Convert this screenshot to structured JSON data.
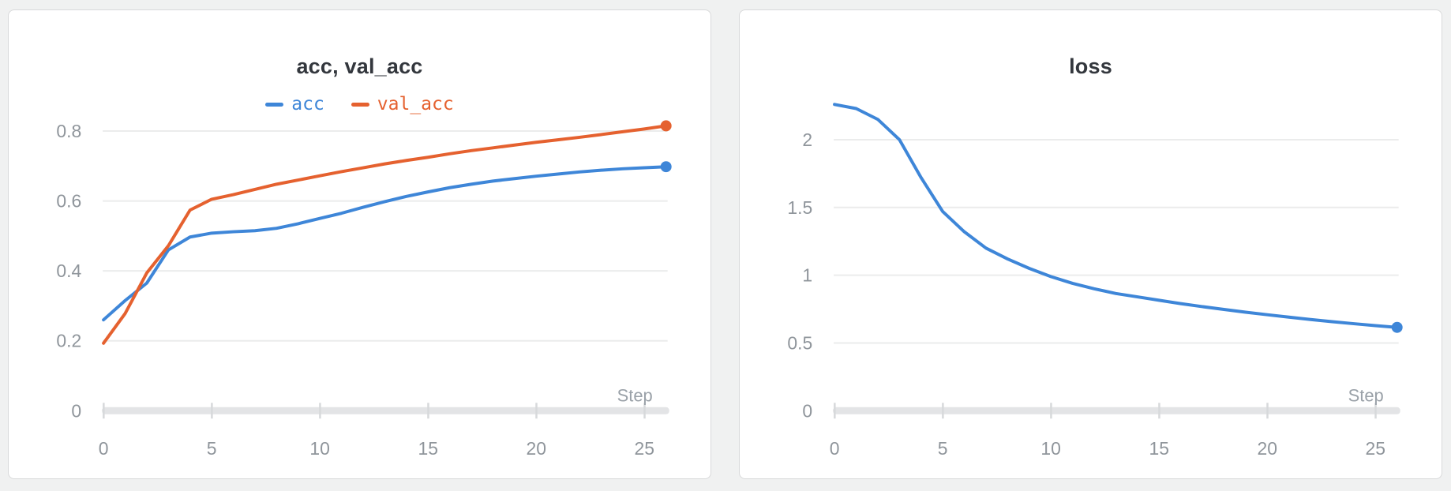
{
  "palette": {
    "blue": "#3e86d8",
    "orange": "#e5612f",
    "grid": "#ebecec",
    "axis_bar": "#e3e4e6",
    "tick_mark": "#d7d9db",
    "tick_label": "#8f959b",
    "axis_title": "#9aa1a8",
    "title_text": "#33373d",
    "card_bg": "#ffffff",
    "card_border": "#d8d9da",
    "page_bg": "#f0f1f1"
  },
  "chart_data": [
    {
      "type": "line",
      "title": "acc, val_acc",
      "xlabel": "Step",
      "x": [
        0,
        1,
        2,
        3,
        4,
        5,
        6,
        7,
        8,
        9,
        10,
        11,
        12,
        13,
        14,
        15,
        16,
        17,
        18,
        19,
        20,
        21,
        22,
        23,
        24,
        25,
        26
      ],
      "x_ticks": [
        0,
        5,
        10,
        15,
        20,
        25
      ],
      "x_tick_labels": [
        "0",
        "5",
        "10",
        "15",
        "20",
        "25"
      ],
      "y_ticks": [
        0,
        0.2,
        0.4,
        0.6,
        0.8
      ],
      "y_tick_labels": [
        "0",
        "0.2",
        "0.4",
        "0.6",
        "0.8"
      ],
      "xlim": [
        0,
        26
      ],
      "ylim": [
        0,
        0.88
      ],
      "grid": "horizontal",
      "legend_position": "top-center",
      "series": [
        {
          "name": "acc",
          "color": "#3e86d8",
          "values": [
            0.26,
            0.315,
            0.365,
            0.46,
            0.497,
            0.508,
            0.512,
            0.515,
            0.522,
            0.535,
            0.55,
            0.565,
            0.582,
            0.598,
            0.613,
            0.626,
            0.638,
            0.648,
            0.657,
            0.664,
            0.671,
            0.677,
            0.683,
            0.688,
            0.692,
            0.695,
            0.698
          ]
        },
        {
          "name": "val_acc",
          "color": "#e5612f",
          "values": [
            0.193,
            0.278,
            0.394,
            0.472,
            0.574,
            0.605,
            0.618,
            0.633,
            0.648,
            0.66,
            0.672,
            0.684,
            0.695,
            0.706,
            0.716,
            0.725,
            0.735,
            0.744,
            0.752,
            0.76,
            0.768,
            0.775,
            0.782,
            0.79,
            0.798,
            0.806,
            0.815
          ]
        }
      ]
    },
    {
      "type": "line",
      "title": "loss",
      "xlabel": "Step",
      "x": [
        0,
        1,
        2,
        3,
        4,
        5,
        6,
        7,
        8,
        9,
        10,
        11,
        12,
        13,
        14,
        15,
        16,
        17,
        18,
        19,
        20,
        21,
        22,
        23,
        24,
        25,
        26
      ],
      "x_ticks": [
        0,
        5,
        10,
        15,
        20,
        25
      ],
      "x_tick_labels": [
        "0",
        "5",
        "10",
        "15",
        "20",
        "25"
      ],
      "y_ticks": [
        0,
        0.5,
        1,
        1.5,
        2
      ],
      "y_tick_labels": [
        "0",
        "0.5",
        "1",
        "1.5",
        "2"
      ],
      "xlim": [
        0,
        26
      ],
      "ylim": [
        0,
        2.27
      ],
      "grid": "horizontal",
      "legend_position": "none",
      "series": [
        {
          "name": "loss",
          "color": "#3e86d8",
          "values": [
            2.26,
            2.23,
            2.15,
            2.0,
            1.72,
            1.47,
            1.32,
            1.2,
            1.12,
            1.05,
            0.99,
            0.94,
            0.9,
            0.865,
            0.84,
            0.815,
            0.79,
            0.768,
            0.747,
            0.727,
            0.708,
            0.69,
            0.673,
            0.657,
            0.642,
            0.628,
            0.615
          ]
        }
      ]
    }
  ]
}
